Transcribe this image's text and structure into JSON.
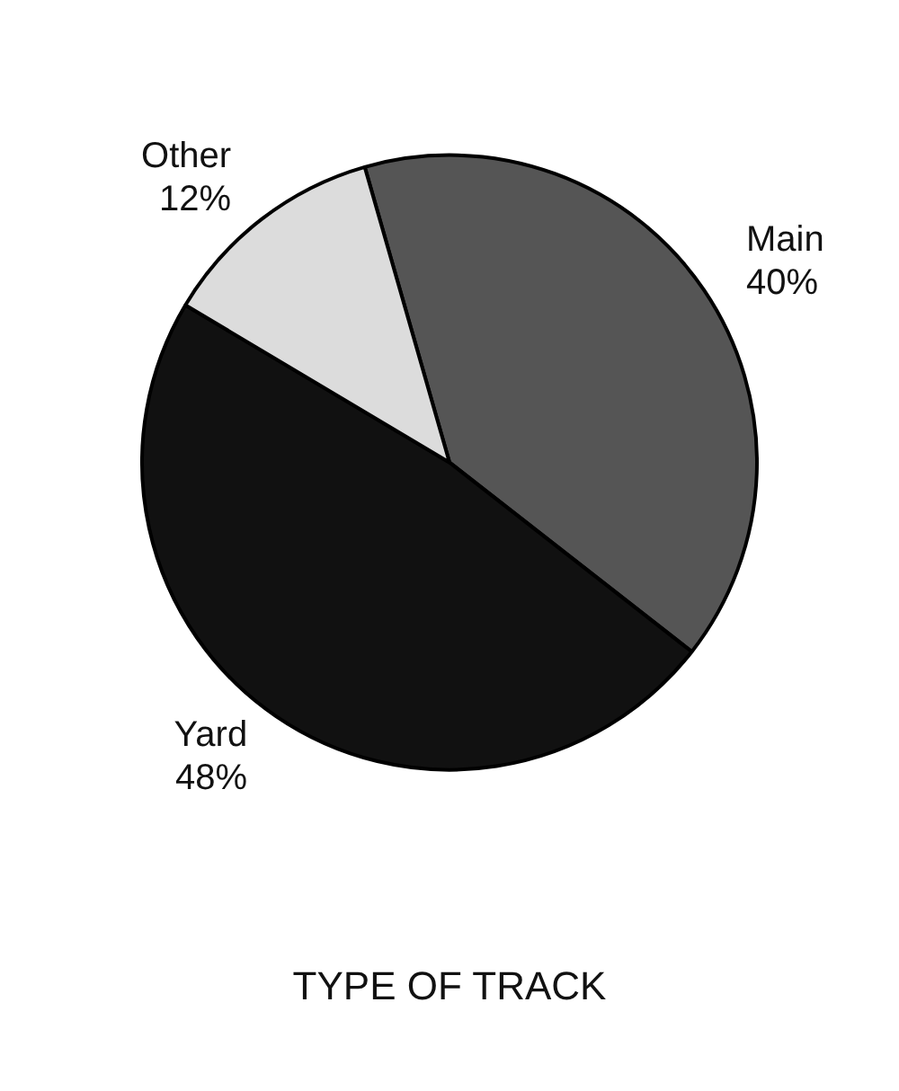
{
  "chart_data": {
    "type": "pie",
    "title": "TYPE OF TRACK",
    "categories": [
      "Main",
      "Yard",
      "Other"
    ],
    "values": [
      40,
      48,
      12
    ],
    "colors": [
      "#555555",
      "#111111",
      "#dcdcdc"
    ],
    "value_labels": [
      "40%",
      "48%",
      "12%"
    ],
    "legend": false
  }
}
